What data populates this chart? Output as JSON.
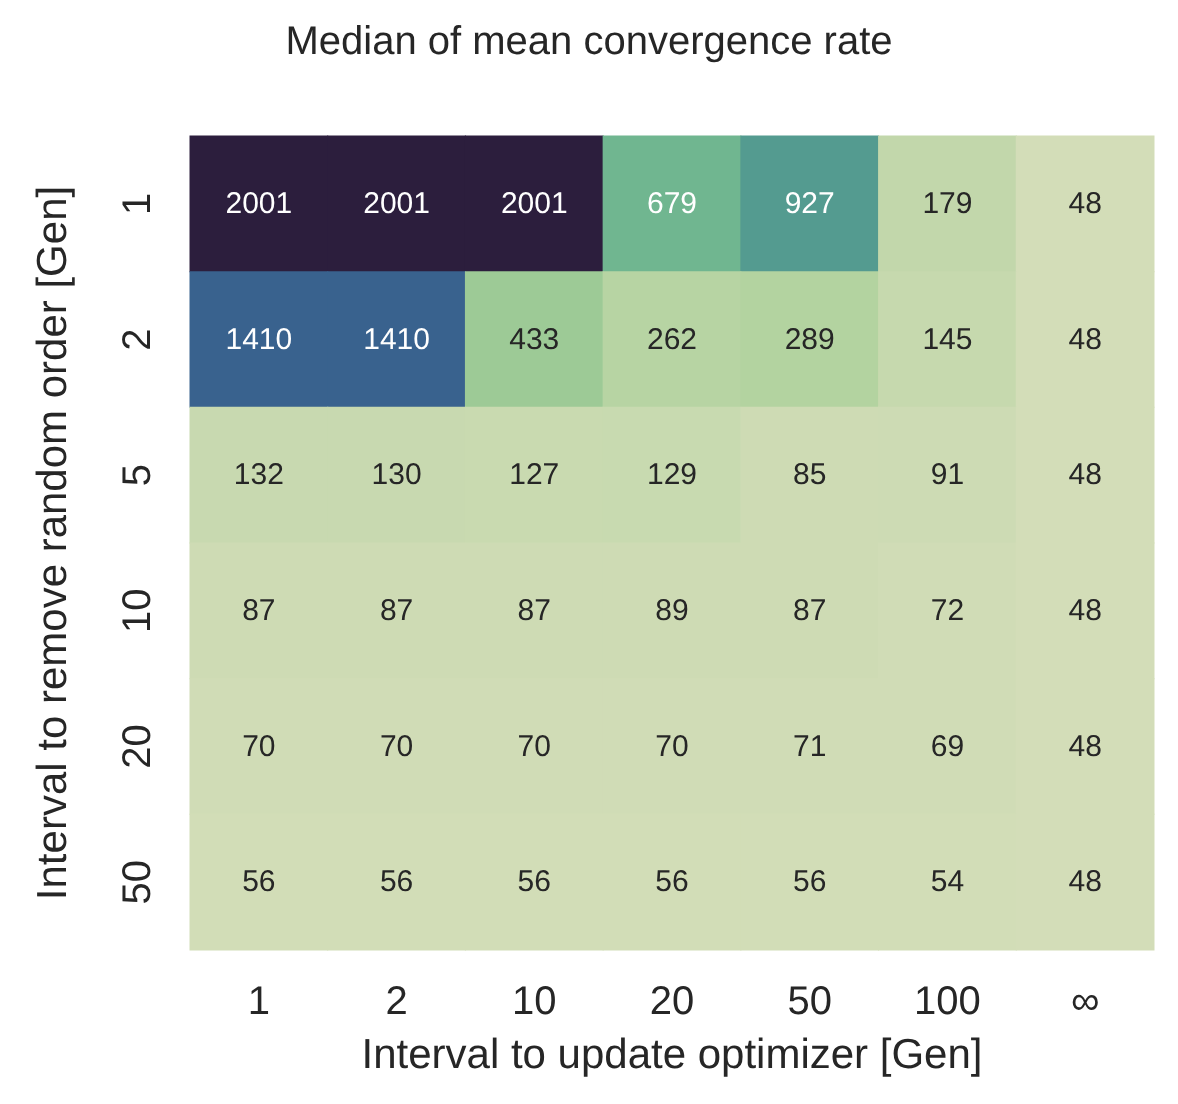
{
  "chart_data": {
    "type": "heatmap",
    "title": "Median of mean convergence rate",
    "xlabel": "Interval to update optimizer [Gen]",
    "ylabel": "Interval to remove random order [Gen]",
    "categories": [
      "1",
      "2",
      "10",
      "20",
      "50",
      "100",
      "∞"
    ],
    "y_categories": [
      "1",
      "2",
      "5",
      "10",
      "20",
      "50"
    ],
    "cells": [
      [
        2001,
        2001,
        2001,
        679,
        927,
        179,
        48
      ],
      [
        1410,
        1410,
        433,
        262,
        289,
        145,
        48
      ],
      [
        132,
        130,
        127,
        129,
        85,
        91,
        48
      ],
      [
        87,
        87,
        87,
        89,
        87,
        72,
        48
      ],
      [
        70,
        70,
        70,
        70,
        71,
        69,
        48
      ],
      [
        56,
        56,
        56,
        56,
        56,
        54,
        48
      ]
    ],
    "data_labels": true
  }
}
